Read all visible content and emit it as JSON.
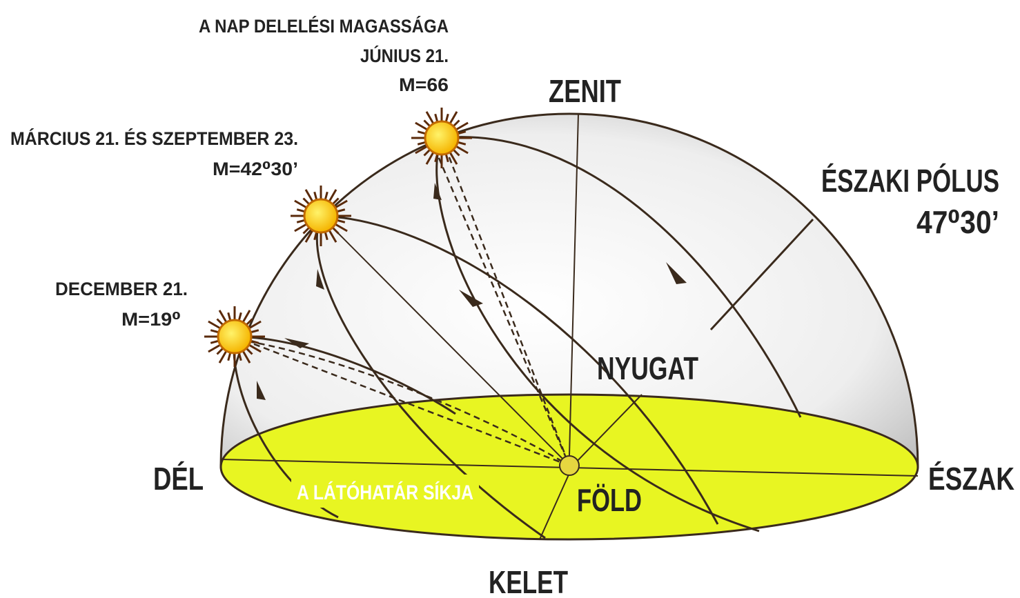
{
  "header": {
    "title": "A NAP DELELÉSI MAGASSÁGA"
  },
  "positions": [
    {
      "date": "JÚNIUS 21.",
      "altitude": "M=66"
    },
    {
      "date": "MÁRCIUS 21. ÉS SZEPTEMBER 23.",
      "altitude": "M=42⁰30’"
    },
    {
      "date": "DECEMBER 21.",
      "altitude": "M=19⁰"
    }
  ],
  "sky": {
    "zenith": "ZENIT",
    "pole": "ÉSZAKI PÓLUS",
    "pole_angle": "47⁰30’"
  },
  "directions": {
    "west": "NYUGAT",
    "south": "DÉL",
    "north": "ÉSZAK",
    "east": "KELET"
  },
  "horizon": {
    "label": "A LÁTÓHATÁR SÍKJA",
    "earth": "FÖLD"
  }
}
